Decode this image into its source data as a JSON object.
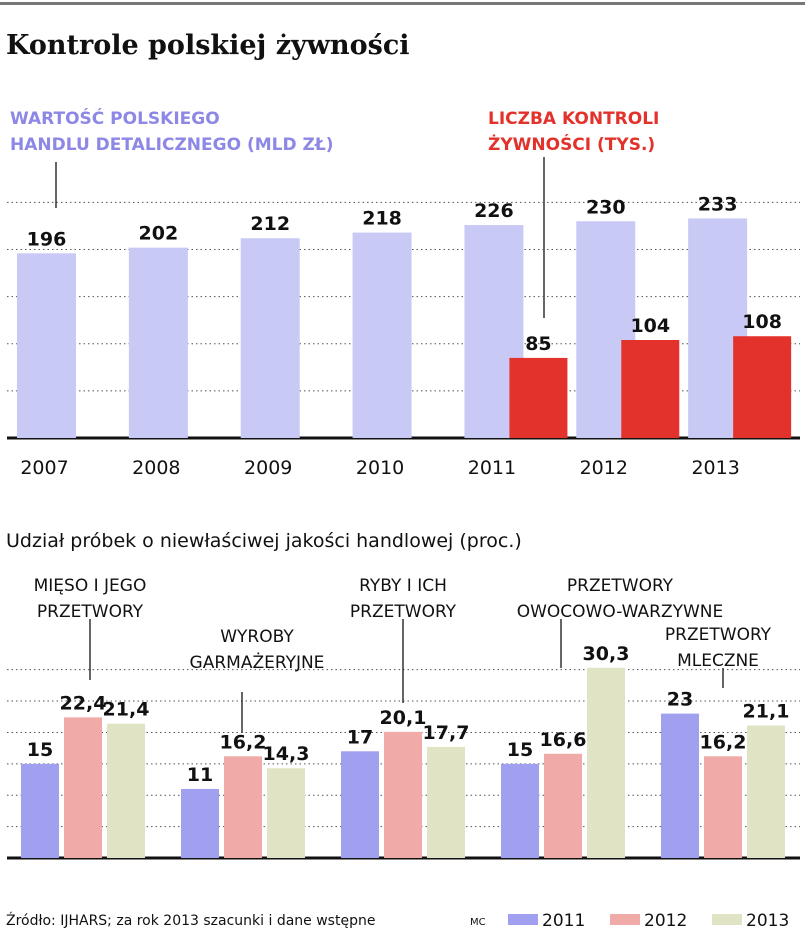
{
  "title": "Kontrole polskiej żywności",
  "colors": {
    "trade": "#c9c9f6",
    "controls": "#e3322b",
    "trade_label": "#8d87e6",
    "controls_label": "#e3322b",
    "s2011": "#a19ff0",
    "s2012": "#f0aaa8",
    "s2013": "#e1e4c4",
    "grid": "#555555"
  },
  "chart_data": [
    {
      "type": "bar",
      "categories": [
        "2007",
        "2008",
        "2009",
        "2010",
        "2011",
        "2012",
        "2013"
      ],
      "series": [
        {
          "name": "WARTOŚĆ POLSKIEGO HANDLU DETALICZNEGO (MLD ZŁ)",
          "values": [
            196,
            202,
            212,
            218,
            226,
            230,
            233
          ]
        },
        {
          "name": "LICZBA KONTROLI ŻYWNOŚCI (TYS.)",
          "values": [
            null,
            null,
            null,
            null,
            85,
            104,
            108
          ]
        }
      ],
      "value_labels": [
        "196",
        "202",
        "212",
        "218",
        "226",
        "230",
        "233",
        "85",
        "104",
        "108"
      ],
      "legend_lines": {
        "trade": [
          "WARTOŚĆ POLSKIEGO",
          "HANDLU DETALICZNEGO (MLD ZŁ)"
        ],
        "controls": [
          "LICZBA KONTROLI",
          "ŻYWNOŚCI (TYS.)"
        ]
      },
      "ylim": [
        0,
        260
      ],
      "grid": true
    },
    {
      "type": "bar",
      "title": "Udział próbek o niewłaściwej jakości handlowej (proc.)",
      "categories": [
        [
          "MIĘSO I JEGO",
          "PRZETWORY"
        ],
        [
          "WYROBY",
          "GARMAŻERYJNE"
        ],
        [
          "RYBY I ICH",
          "PRZETWORY"
        ],
        [
          "PRZETWORY",
          "OWOCOWO-WARZYWNE"
        ],
        [
          "PRZETWORY",
          "MLECZNE"
        ]
      ],
      "series": [
        {
          "name": "2011",
          "values": [
            15,
            11,
            17,
            15,
            23
          ]
        },
        {
          "name": "2012",
          "values": [
            22.4,
            16.2,
            20.1,
            16.6,
            16.2
          ]
        },
        {
          "name": "2013",
          "values": [
            21.4,
            14.3,
            17.7,
            30.3,
            21.1
          ]
        }
      ],
      "value_labels": [
        [
          "15",
          "22,4",
          "21,4"
        ],
        [
          "11",
          "16,2",
          "14,3"
        ],
        [
          "17",
          "20,1",
          "17,7"
        ],
        [
          "15",
          "16,6",
          "30,3"
        ],
        [
          "23",
          "16,2",
          "21,1"
        ]
      ],
      "ylim": [
        0,
        36
      ],
      "grid": true,
      "legend_position": "bottom-right"
    }
  ],
  "footer": {
    "source": "Źródło: IJHARS; za rok 2013 szacunki i dane wstępne",
    "credit": "MC"
  }
}
